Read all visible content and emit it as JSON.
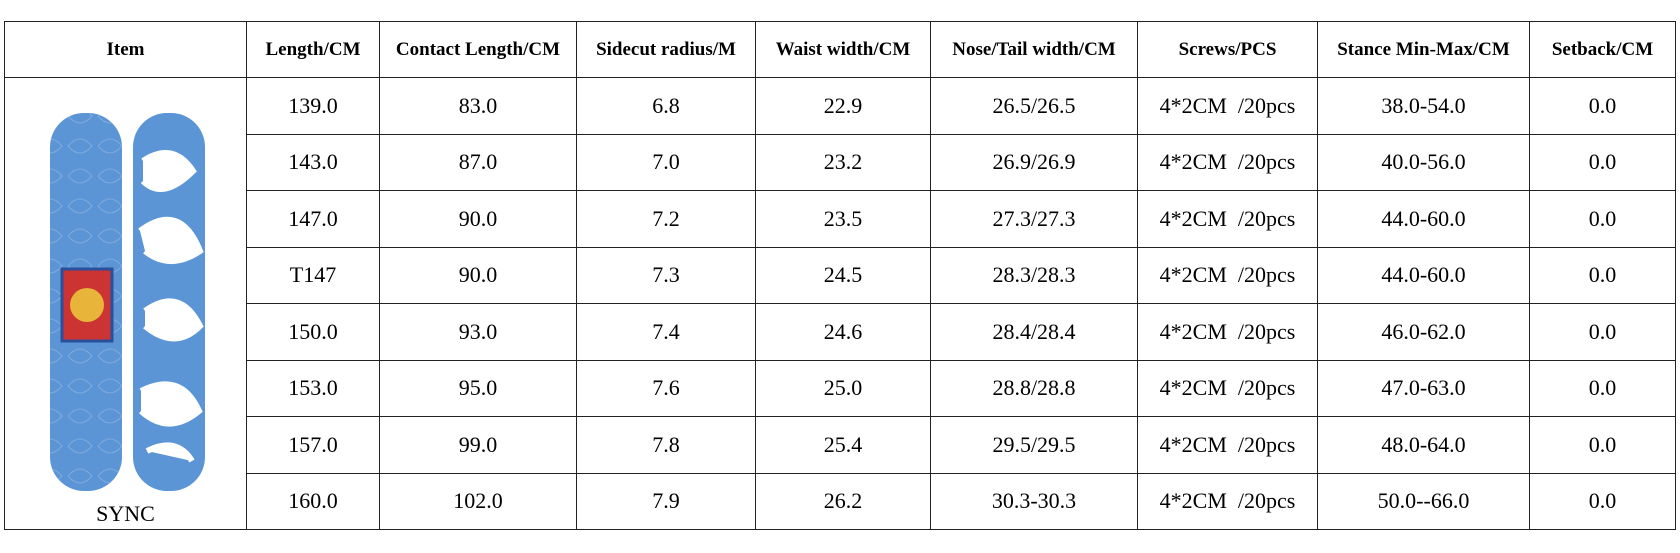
{
  "table": {
    "headers": [
      "Item",
      "Length/CM",
      "Contact Length/CM",
      "Sidecut radius/M",
      "Waist width/CM",
      "Nose/Tail width/CM",
      "Screws/PCS",
      "Stance Min-Max/CM",
      "Setback/CM"
    ],
    "item_label": "SYNC",
    "rows": [
      [
        "139.0",
        "83.0",
        "6.8",
        "22.9",
        "26.5/26.5",
        "4*2CM  /20pcs",
        "38.0-54.0",
        "0.0"
      ],
      [
        "143.0",
        "87.0",
        "7.0",
        "23.2",
        "26.9/26.9",
        "4*2CM  /20pcs",
        "40.0-56.0",
        "0.0"
      ],
      [
        "147.0",
        "90.0",
        "7.2",
        "23.5",
        "27.3/27.3",
        "4*2CM  /20pcs",
        "44.0-60.0",
        "0.0"
      ],
      [
        "T147",
        "90.0",
        "7.3",
        "24.5",
        "28.3/28.3",
        "4*2CM  /20pcs",
        "44.0-60.0",
        "0.0"
      ],
      [
        "150.0",
        "93.0",
        "7.4",
        "24.6",
        "28.4/28.4",
        "4*2CM  /20pcs",
        "46.0-62.0",
        "0.0"
      ],
      [
        "153.0",
        "95.0",
        "7.6",
        "25.0",
        "28.8/28.8",
        "4*2CM  /20pcs",
        "47.0-63.0",
        "0.0"
      ],
      [
        "157.0",
        "99.0",
        "7.8",
        "25.4",
        "29.5/29.5",
        "4*2CM  /20pcs",
        "48.0-64.0",
        "0.0"
      ],
      [
        "160.0",
        "102.0",
        "7.9",
        "26.2",
        "30.3-30.3",
        "4*2CM  /20pcs",
        "50.0--66.0",
        "0.0"
      ]
    ]
  }
}
